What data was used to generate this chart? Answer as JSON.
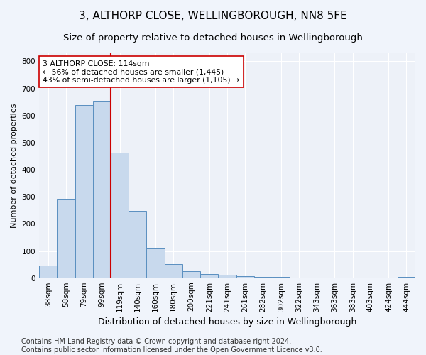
{
  "title": "3, ALTHORP CLOSE, WELLINGBOROUGH, NN8 5FE",
  "subtitle": "Size of property relative to detached houses in Wellingborough",
  "xlabel": "Distribution of detached houses by size in Wellingborough",
  "ylabel": "Number of detached properties",
  "categories": [
    "38sqm",
    "58sqm",
    "79sqm",
    "99sqm",
    "119sqm",
    "140sqm",
    "160sqm",
    "180sqm",
    "200sqm",
    "221sqm",
    "241sqm",
    "261sqm",
    "282sqm",
    "302sqm",
    "322sqm",
    "343sqm",
    "363sqm",
    "383sqm",
    "403sqm",
    "424sqm",
    "444sqm"
  ],
  "values": [
    47,
    293,
    638,
    655,
    463,
    248,
    113,
    52,
    25,
    14,
    13,
    8,
    5,
    4,
    3,
    2,
    2,
    1,
    1,
    0,
    4
  ],
  "bar_color": "#c8d9ed",
  "bar_edge_color": "#5a8fc0",
  "property_line_color": "#cc0000",
  "annotation_text": "3 ALTHORP CLOSE: 114sqm\n← 56% of detached houses are smaller (1,445)\n43% of semi-detached houses are larger (1,105) →",
  "annotation_box_color": "#ffffff",
  "annotation_box_edge_color": "#cc0000",
  "ylim": [
    0,
    830
  ],
  "yticks": [
    0,
    100,
    200,
    300,
    400,
    500,
    600,
    700,
    800
  ],
  "background_color": "#f0f4fb",
  "plot_bg_color": "#edf1f8",
  "footer": "Contains HM Land Registry data © Crown copyright and database right 2024.\nContains public sector information licensed under the Open Government Licence v3.0.",
  "title_fontsize": 11,
  "subtitle_fontsize": 9.5,
  "xlabel_fontsize": 9,
  "ylabel_fontsize": 8,
  "tick_fontsize": 7.5,
  "footer_fontsize": 7,
  "annotation_fontsize": 7.8
}
